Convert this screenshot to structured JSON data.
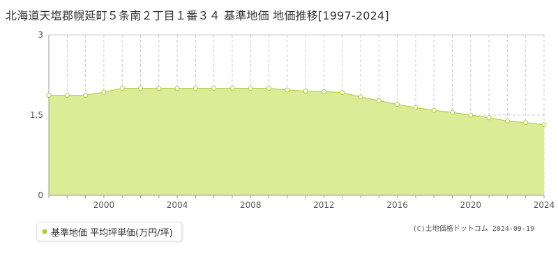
{
  "title": "北海道天塩郡幌延町５条南２丁目１番３４ 基準地価 地価推移[1997-2024]",
  "legend": {
    "label": "基準地価 平均坪単価(万円/坪)"
  },
  "copyright": "(C)土地価格ドットコム 2024-09-19",
  "colors": {
    "fill": "#dceb95",
    "line": "#a8cf2e",
    "marker_fill": "#ffffff",
    "grid": "#cccccc"
  },
  "chart_data": {
    "type": "area",
    "title": "北海道天塩郡幌延町５条南２丁目１番３４ 基準地価 地価推移[1997-2024]",
    "xlabel": "",
    "ylabel": "",
    "xlim": [
      1997,
      2024
    ],
    "ylim": [
      0,
      3
    ],
    "y_ticks": [
      0,
      1.5,
      3
    ],
    "y_tick_labels": [
      "0",
      "1.5",
      "3"
    ],
    "x_ticks": [
      2000,
      2004,
      2008,
      2012,
      2016,
      2020,
      2024
    ],
    "grid": true,
    "legend_position": "bottom-left",
    "series": [
      {
        "name": "基準地価 平均坪単価(万円/坪)",
        "x": [
          1997,
          1998,
          1999,
          2000,
          2001,
          2002,
          2003,
          2004,
          2005,
          2006,
          2007,
          2008,
          2009,
          2010,
          2011,
          2012,
          2013,
          2014,
          2015,
          2016,
          2017,
          2018,
          2019,
          2020,
          2021,
          2022,
          2023,
          2024
        ],
        "values": [
          1.87,
          1.87,
          1.87,
          1.93,
          2.0,
          2.0,
          2.0,
          2.0,
          2.0,
          2.0,
          2.0,
          2.0,
          2.0,
          1.97,
          1.95,
          1.94,
          1.92,
          1.84,
          1.77,
          1.7,
          1.64,
          1.59,
          1.55,
          1.5,
          1.45,
          1.39,
          1.36,
          1.32
        ]
      }
    ]
  }
}
